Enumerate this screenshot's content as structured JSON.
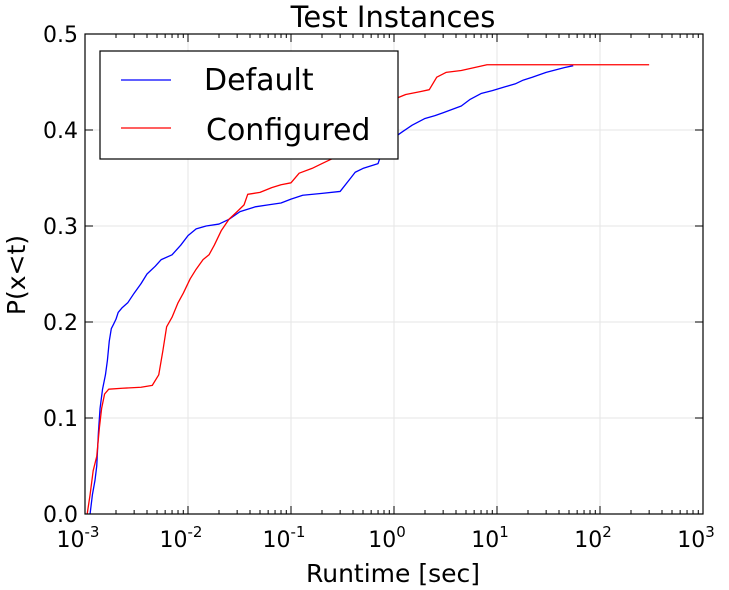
{
  "chart_data": {
    "type": "line",
    "title": "Test Instances",
    "xlabel": "Runtime [sec]",
    "ylabel": "P(x<t)",
    "x_scale": "log",
    "xlim": [
      0.001,
      1000
    ],
    "ylim": [
      0,
      0.5
    ],
    "x_ticks": [
      {
        "value": 0.001,
        "base": "10",
        "exp": "-3"
      },
      {
        "value": 0.01,
        "base": "10",
        "exp": "-2"
      },
      {
        "value": 0.1,
        "base": "10",
        "exp": "-1"
      },
      {
        "value": 1,
        "base": "10",
        "exp": "0"
      },
      {
        "value": 10,
        "base": "10",
        "exp": "1"
      },
      {
        "value": 100,
        "base": "10",
        "exp": "2"
      },
      {
        "value": 1000,
        "base": "10",
        "exp": "3"
      }
    ],
    "y_ticks": [
      {
        "value": 0.0,
        "label": "0.0"
      },
      {
        "value": 0.1,
        "label": "0.1"
      },
      {
        "value": 0.2,
        "label": "0.2"
      },
      {
        "value": 0.3,
        "label": "0.3"
      },
      {
        "value": 0.4,
        "label": "0.4"
      },
      {
        "value": 0.5,
        "label": "0.5"
      }
    ],
    "grid": true,
    "legend_position": "top-left",
    "series": [
      {
        "name": "Default",
        "color": "#0000ff",
        "points": [
          [
            0.00112,
            0.0
          ],
          [
            0.00118,
            0.02
          ],
          [
            0.00125,
            0.035
          ],
          [
            0.0013,
            0.05
          ],
          [
            0.00135,
            0.085
          ],
          [
            0.0014,
            0.11
          ],
          [
            0.00148,
            0.13
          ],
          [
            0.00158,
            0.145
          ],
          [
            0.00165,
            0.16
          ],
          [
            0.00172,
            0.18
          ],
          [
            0.0018,
            0.193
          ],
          [
            0.0019,
            0.198
          ],
          [
            0.002,
            0.203
          ],
          [
            0.0021,
            0.21
          ],
          [
            0.0023,
            0.215
          ],
          [
            0.0026,
            0.22
          ],
          [
            0.003,
            0.23
          ],
          [
            0.0035,
            0.24
          ],
          [
            0.004,
            0.25
          ],
          [
            0.0048,
            0.258
          ],
          [
            0.0055,
            0.265
          ],
          [
            0.007,
            0.27
          ],
          [
            0.0085,
            0.28
          ],
          [
            0.01,
            0.29
          ],
          [
            0.012,
            0.297
          ],
          [
            0.015,
            0.3
          ],
          [
            0.02,
            0.302
          ],
          [
            0.025,
            0.307
          ],
          [
            0.032,
            0.315
          ],
          [
            0.045,
            0.32
          ],
          [
            0.06,
            0.322
          ],
          [
            0.08,
            0.324
          ],
          [
            0.1,
            0.328
          ],
          [
            0.13,
            0.332
          ],
          [
            0.2,
            0.334
          ],
          [
            0.3,
            0.336
          ],
          [
            0.38,
            0.35
          ],
          [
            0.42,
            0.356
          ],
          [
            0.5,
            0.36
          ],
          [
            0.7,
            0.365
          ],
          [
            0.78,
            0.38
          ],
          [
            0.85,
            0.385
          ],
          [
            1.0,
            0.392
          ],
          [
            1.2,
            0.398
          ],
          [
            1.5,
            0.405
          ],
          [
            2.0,
            0.412
          ],
          [
            2.5,
            0.415
          ],
          [
            3.0,
            0.418
          ],
          [
            4.5,
            0.425
          ],
          [
            5.5,
            0.432
          ],
          [
            7.0,
            0.438
          ],
          [
            9.0,
            0.441
          ],
          [
            12,
            0.445
          ],
          [
            15,
            0.448
          ],
          [
            18,
            0.452
          ],
          [
            22,
            0.455
          ],
          [
            30,
            0.46
          ],
          [
            45,
            0.465
          ],
          [
            55,
            0.467
          ]
        ]
      },
      {
        "name": "Configured",
        "color": "#ff0000",
        "points": [
          [
            0.00105,
            0.0
          ],
          [
            0.00112,
            0.02
          ],
          [
            0.0012,
            0.045
          ],
          [
            0.0013,
            0.06
          ],
          [
            0.00138,
            0.09
          ],
          [
            0.00145,
            0.11
          ],
          [
            0.00155,
            0.125
          ],
          [
            0.0017,
            0.13
          ],
          [
            0.0023,
            0.131
          ],
          [
            0.0035,
            0.132
          ],
          [
            0.0045,
            0.134
          ],
          [
            0.0052,
            0.145
          ],
          [
            0.0057,
            0.17
          ],
          [
            0.0062,
            0.195
          ],
          [
            0.007,
            0.205
          ],
          [
            0.008,
            0.22
          ],
          [
            0.009,
            0.23
          ],
          [
            0.0105,
            0.245
          ],
          [
            0.012,
            0.255
          ],
          [
            0.014,
            0.265
          ],
          [
            0.016,
            0.27
          ],
          [
            0.018,
            0.28
          ],
          [
            0.021,
            0.295
          ],
          [
            0.025,
            0.307
          ],
          [
            0.03,
            0.315
          ],
          [
            0.035,
            0.322
          ],
          [
            0.038,
            0.333
          ],
          [
            0.05,
            0.335
          ],
          [
            0.065,
            0.34
          ],
          [
            0.08,
            0.343
          ],
          [
            0.1,
            0.345
          ],
          [
            0.12,
            0.355
          ],
          [
            0.16,
            0.36
          ],
          [
            0.2,
            0.365
          ],
          [
            0.25,
            0.37
          ],
          [
            0.35,
            0.375
          ],
          [
            0.45,
            0.385
          ],
          [
            0.6,
            0.39
          ],
          [
            0.75,
            0.4
          ],
          [
            0.9,
            0.42
          ],
          [
            1.0,
            0.432
          ],
          [
            1.3,
            0.437
          ],
          [
            1.8,
            0.44
          ],
          [
            2.2,
            0.442
          ],
          [
            2.6,
            0.455
          ],
          [
            3.2,
            0.46
          ],
          [
            4.5,
            0.462
          ],
          [
            6.0,
            0.465
          ],
          [
            8.0,
            0.468
          ],
          [
            20,
            0.468
          ],
          [
            100,
            0.468
          ],
          [
            300,
            0.468
          ]
        ]
      }
    ]
  }
}
